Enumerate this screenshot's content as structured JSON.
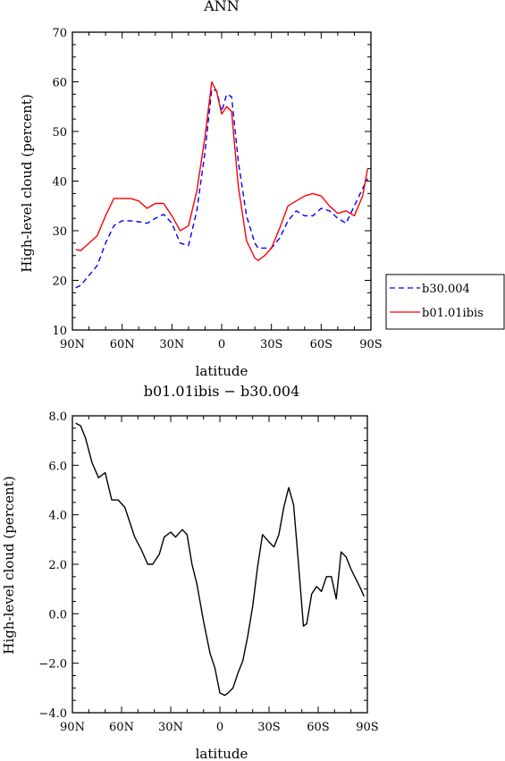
{
  "chart_data": [
    {
      "type": "line",
      "title": "ANN",
      "xlabel": "latitude",
      "ylabel": "High-level cloud (percent)",
      "xticks": [
        "90N",
        "60N",
        "30N",
        "0",
        "30S",
        "60S",
        "90S"
      ],
      "yticks": [
        "10",
        "20",
        "30",
        "40",
        "50",
        "60",
        "70"
      ],
      "xlim": [
        90,
        -90
      ],
      "ylim": [
        10,
        70
      ],
      "legend_position": "right",
      "series": [
        {
          "name": "b30.004",
          "color": "#0000ff",
          "dash": "dashed",
          "x": [
            88,
            85,
            80,
            75,
            70,
            65,
            60,
            55,
            50,
            45,
            40,
            35,
            30,
            25,
            20,
            15,
            10,
            6,
            3,
            0,
            -3,
            -6,
            -10,
            -15,
            -20,
            -22,
            -26,
            -30,
            -35,
            -40,
            -45,
            -50,
            -55,
            -60,
            -65,
            -70,
            -75,
            -80,
            -85,
            -88
          ],
          "y": [
            18.5,
            19,
            21,
            23,
            27.5,
            31,
            32,
            32,
            31.8,
            31.5,
            32.5,
            33.3,
            31.5,
            27.5,
            27,
            34,
            46,
            58.5,
            58.2,
            54,
            57.5,
            57,
            44,
            33,
            27.5,
            26.5,
            26.5,
            26.5,
            28.5,
            32,
            34,
            33,
            33,
            34.5,
            34,
            32.5,
            31.5,
            35,
            38.5,
            40.5
          ]
        },
        {
          "name": "b01.01ibis",
          "color": "#ff0000",
          "dash": "solid",
          "x": [
            88,
            85,
            80,
            75,
            70,
            65,
            60,
            55,
            50,
            45,
            40,
            35,
            30,
            25,
            20,
            15,
            10,
            6,
            3,
            0,
            -3,
            -6,
            -10,
            -15,
            -20,
            -22,
            -26,
            -30,
            -35,
            -40,
            -45,
            -50,
            -55,
            -60,
            -65,
            -70,
            -75,
            -80,
            -85,
            -88
          ],
          "y": [
            26.2,
            26,
            27.5,
            29,
            33,
            36.5,
            36.5,
            36.5,
            36,
            34.5,
            35.5,
            35.5,
            33,
            30,
            31,
            38,
            49,
            60,
            58,
            53.5,
            55,
            54,
            39,
            28,
            24.5,
            24,
            25,
            26.5,
            30.5,
            35,
            36,
            37,
            37.5,
            37,
            35,
            33.5,
            34,
            33,
            37,
            42.5
          ]
        }
      ]
    },
    {
      "type": "line",
      "title": "b01.01ibis − b30.004",
      "xlabel": "latitude",
      "ylabel": "High-level cloud (percent)",
      "xticks": [
        "90N",
        "60N",
        "30N",
        "0",
        "30S",
        "60S",
        "90S"
      ],
      "yticks": [
        "−4.0",
        "−2.0",
        "0.0",
        "2.0",
        "4.0",
        "6.0",
        "8.0"
      ],
      "xlim": [
        90,
        -90
      ],
      "ylim": [
        -4,
        8
      ],
      "series": [
        {
          "color": "#000000",
          "x": [
            88,
            85,
            82,
            78,
            74,
            70,
            66,
            62,
            58,
            55,
            52,
            48,
            44,
            41,
            37,
            34,
            30,
            27,
            23,
            20,
            17,
            14,
            10,
            6,
            3,
            0,
            -3,
            -5,
            -8,
            -11,
            -14,
            -17,
            -20,
            -23,
            -26,
            -30,
            -33,
            -36,
            -39,
            -42,
            -45,
            -48,
            -51,
            -53,
            -56,
            -59,
            -62,
            -65,
            -68,
            -71,
            -74,
            -77,
            -80,
            -83,
            -86,
            -88
          ],
          "y": [
            7.7,
            7.6,
            7.1,
            6.1,
            5.5,
            5.7,
            4.6,
            4.6,
            4.3,
            3.7,
            3.1,
            2.6,
            2.0,
            2.0,
            2.4,
            3.1,
            3.3,
            3.1,
            3.4,
            3.2,
            2.0,
            1.2,
            -0.3,
            -1.6,
            -2.2,
            -3.2,
            -3.3,
            -3.2,
            -3.0,
            -2.4,
            -1.9,
            -0.9,
            0.3,
            1.9,
            3.2,
            2.9,
            2.7,
            3.2,
            4.3,
            5.1,
            4.4,
            2.0,
            -0.5,
            -0.4,
            0.8,
            1.1,
            0.9,
            1.5,
            1.5,
            0.6,
            2.5,
            2.3,
            1.8,
            1.4,
            1.0,
            0.7
          ]
        }
      ]
    }
  ]
}
